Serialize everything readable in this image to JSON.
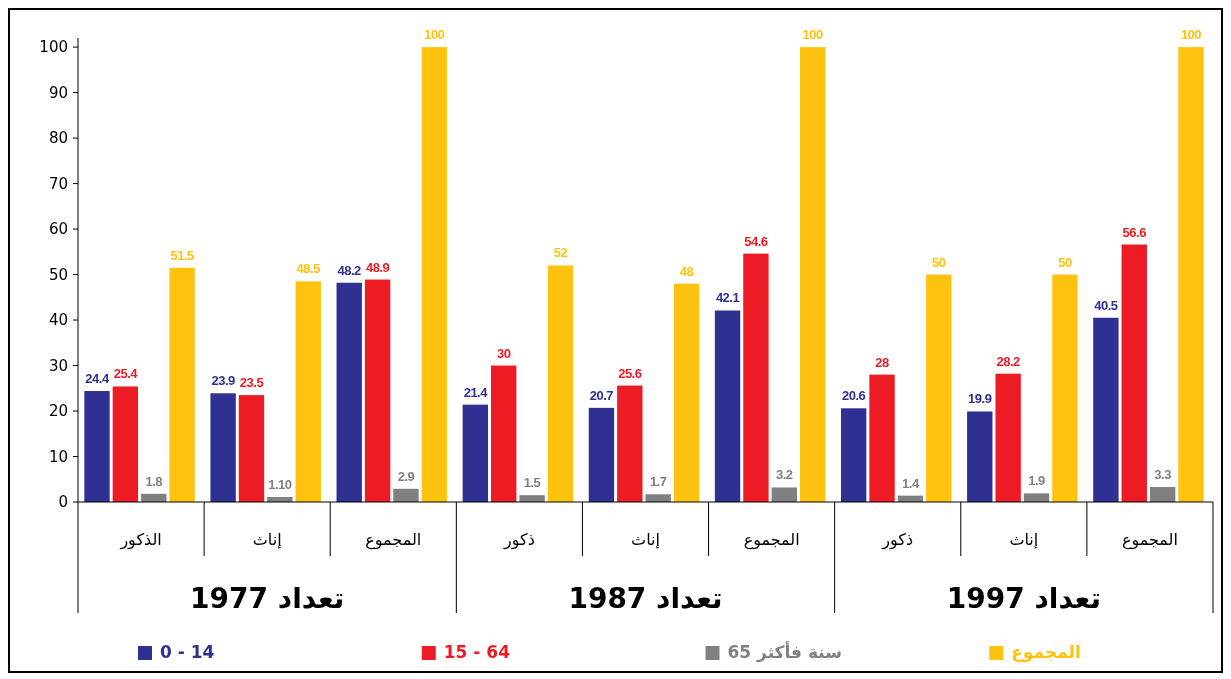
{
  "chart_data": {
    "type": "bar",
    "categories": [
      "الذكور",
      "إناث",
      "المجموع",
      "ذكور",
      "إناث",
      "المجموع",
      "ذكور",
      "إناث",
      "المجموع"
    ],
    "series": [
      {
        "name": "0 - 14",
        "color": "#2e3192",
        "values": [
          24.4,
          23.9,
          48.2,
          21.4,
          20.7,
          42.1,
          20.6,
          19.9,
          40.5
        ],
        "value_labels": [
          "24.4",
          "23.9",
          "48.2",
          "21.4",
          "20.7",
          "42.1",
          "20.6",
          "19.9",
          "40.5"
        ]
      },
      {
        "name": "15 - 64",
        "color": "#ed1c24",
        "values": [
          25.4,
          23.5,
          48.9,
          30,
          25.6,
          54.6,
          28,
          28.2,
          56.6
        ],
        "value_labels": [
          "25.4",
          "23.5",
          "48.9",
          "30",
          "25.6",
          "54.6",
          "28",
          "28.2",
          "56.6"
        ]
      },
      {
        "name": "65 سنة فأكثر",
        "color": "#808080",
        "values": [
          1.8,
          1.1,
          2.9,
          1.5,
          1.7,
          3.2,
          1.4,
          1.9,
          3.3
        ],
        "value_labels": [
          "1.8",
          "1.10",
          "2.9",
          "1.5",
          "1.7",
          "3.2",
          "1.4",
          "1.9",
          "3.3"
        ]
      },
      {
        "name": "المجموع",
        "color": "#ffc20e",
        "values": [
          51.5,
          48.5,
          100,
          52,
          48,
          100,
          50,
          50,
          100
        ],
        "value_labels": [
          "51.5",
          "48.5",
          "100",
          "52",
          "48",
          "100",
          "50",
          "50",
          "100"
        ]
      }
    ],
    "annotations": [
      "تعداد 1977",
      "تعداد 1987",
      "تعداد 1997"
    ],
    "ylim": [
      0,
      102
    ],
    "yticks": [
      0,
      10,
      20,
      30,
      40,
      50,
      60,
      70,
      80,
      90,
      100
    ],
    "legend": "bottom"
  }
}
